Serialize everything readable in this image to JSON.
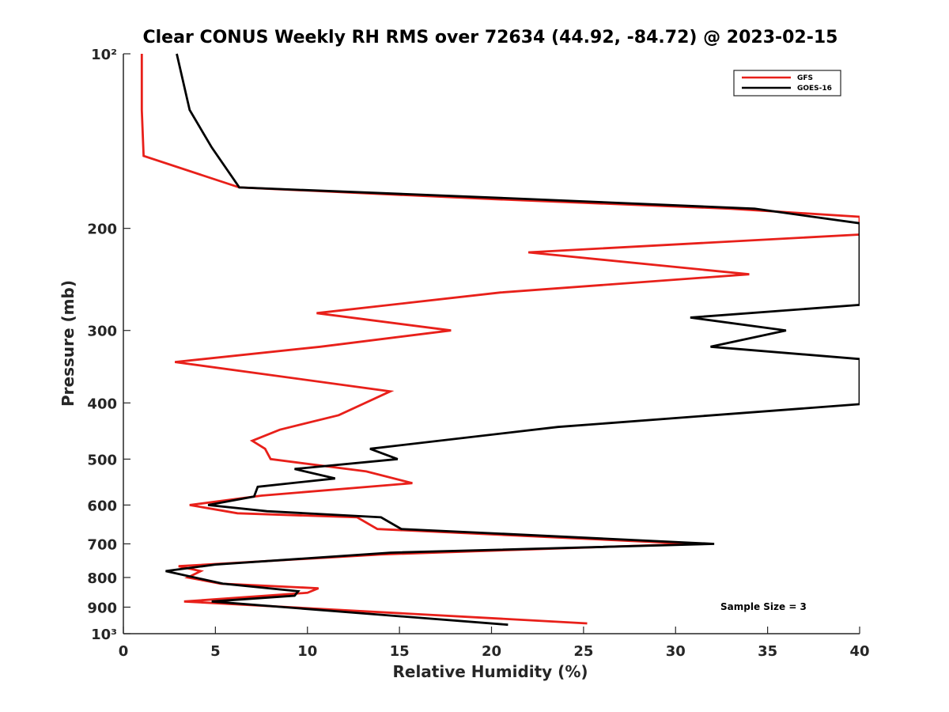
{
  "chart_data": {
    "type": "line",
    "title": "Clear CONUS Weekly RH RMS over 72634 (44.92, -84.72) @ 2023-02-15",
    "xlabel": "Relative Humidity (%)",
    "ylabel": "Pressure (mb)",
    "xlim": [
      0,
      40
    ],
    "ylim": [
      100,
      1000
    ],
    "yscale": "log",
    "y_reversed": true,
    "x_ticks": [
      0,
      5,
      10,
      15,
      20,
      25,
      30,
      35,
      40
    ],
    "x_tick_labels": [
      "0",
      "5",
      "10",
      "15",
      "20",
      "25",
      "30",
      "35",
      "40"
    ],
    "y_ticks": [
      100,
      200,
      300,
      400,
      500,
      600,
      700,
      800,
      900,
      1000
    ],
    "y_tick_labels": [
      "10²",
      "200",
      "300",
      "400",
      "500",
      "600",
      "700",
      "800",
      "900",
      "10³"
    ],
    "legend_position": "top-right",
    "annotation": "Sample Size = 3",
    "series": [
      {
        "name": "GFS",
        "color": "#e8201a",
        "points": [
          [
            1.0,
            100
          ],
          [
            1.0,
            125
          ],
          [
            1.1,
            150
          ],
          [
            6.3,
            170
          ],
          [
            20,
            178
          ],
          [
            33,
            185
          ],
          [
            40,
            191
          ],
          [
            40,
            205
          ],
          [
            22,
            220
          ],
          [
            34,
            240
          ],
          [
            20.5,
            258
          ],
          [
            10.5,
            280
          ],
          [
            17.8,
            300
          ],
          [
            10.7,
            320
          ],
          [
            2.8,
            340
          ],
          [
            14.5,
            382
          ],
          [
            11.7,
            420
          ],
          [
            8.5,
            445
          ],
          [
            7.0,
            465
          ],
          [
            7.7,
            480
          ],
          [
            8.0,
            500
          ],
          [
            13.2,
            525
          ],
          [
            15.7,
            550
          ],
          [
            7.5,
            578
          ],
          [
            3.6,
            600
          ],
          [
            6.2,
            620
          ],
          [
            12.7,
            630
          ],
          [
            13.8,
            660
          ],
          [
            31.0,
            700
          ],
          [
            14.0,
            730
          ],
          [
            3.0,
            765
          ],
          [
            4.2,
            780
          ],
          [
            3.5,
            800
          ],
          [
            5.3,
            820
          ],
          [
            10.6,
            835
          ],
          [
            10.0,
            850
          ],
          [
            3.3,
            880
          ],
          [
            25.2,
            960
          ]
        ]
      },
      {
        "name": "GOES-16",
        "color": "#000000",
        "points": [
          [
            2.9,
            100
          ],
          [
            3.6,
            125
          ],
          [
            4.8,
            145
          ],
          [
            6.3,
            170
          ],
          [
            22,
            178
          ],
          [
            34.3,
            185
          ],
          [
            40,
            196
          ],
          [
            40,
            271
          ],
          [
            30.8,
            285
          ],
          [
            36.0,
            300
          ],
          [
            31.9,
            320
          ],
          [
            40,
            336
          ],
          [
            40,
            402
          ],
          [
            23.6,
            440
          ],
          [
            13.4,
            480
          ],
          [
            14.9,
            500
          ],
          [
            9.3,
            520
          ],
          [
            11.5,
            540
          ],
          [
            7.3,
            558
          ],
          [
            7.1,
            580
          ],
          [
            4.6,
            600
          ],
          [
            7.8,
            615
          ],
          [
            14.0,
            630
          ],
          [
            15.1,
            660
          ],
          [
            20.4,
            672
          ],
          [
            32.1,
            700
          ],
          [
            14.5,
            725
          ],
          [
            5.0,
            760
          ],
          [
            2.3,
            780
          ],
          [
            5.4,
            820
          ],
          [
            9.5,
            845
          ],
          [
            9.3,
            860
          ],
          [
            4.8,
            880
          ],
          [
            20.9,
            965
          ]
        ]
      }
    ]
  }
}
